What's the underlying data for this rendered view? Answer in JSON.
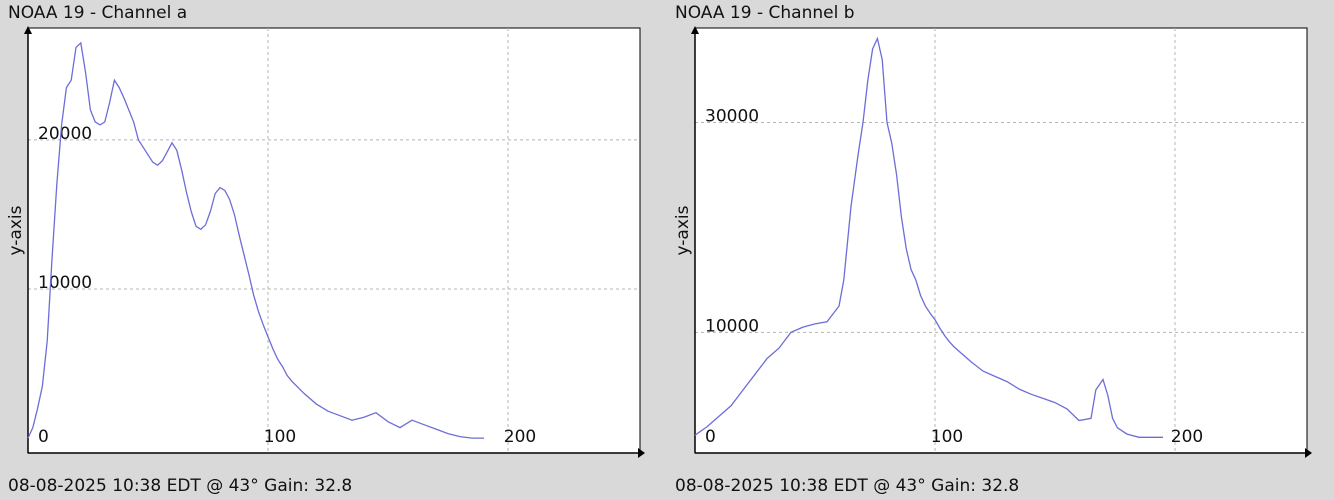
{
  "chart_data": [
    {
      "type": "line",
      "title": "NOAA 19 - Channel a",
      "footer": "08-08-2025 10:38 EDT @ 43° Gain: 32.8",
      "xlabel": "",
      "ylabel": "y-axis",
      "xlim": [
        0,
        255
      ],
      "ylim": [
        -1000,
        27500
      ],
      "xticks": [
        0,
        100,
        200
      ],
      "yticks": [
        10000,
        20000
      ],
      "grid": true,
      "series_color": "#6d6dd9",
      "series": [
        {
          "x": [
            0,
            2,
            4,
            6,
            8,
            10,
            12,
            14,
            16,
            18,
            20,
            22,
            24,
            26,
            28,
            30,
            32,
            34,
            36,
            38,
            40,
            42,
            44,
            46,
            48,
            50,
            52,
            54,
            56,
            58,
            60,
            62,
            64,
            66,
            68,
            70,
            72,
            74,
            76,
            78,
            80,
            82,
            84,
            86,
            88,
            90,
            92,
            94,
            96,
            98,
            100,
            102,
            104,
            106,
            108,
            110,
            115,
            120,
            125,
            130,
            135,
            140,
            145,
            150,
            155,
            160,
            165,
            170,
            175,
            180,
            185,
            190
          ],
          "y": [
            0,
            700,
            2000,
            3500,
            6500,
            12000,
            17000,
            21000,
            23500,
            24000,
            26200,
            26500,
            24500,
            22000,
            21200,
            21000,
            21200,
            22500,
            24000,
            23500,
            22800,
            22000,
            21200,
            20000,
            19500,
            19000,
            18500,
            18300,
            18600,
            19200,
            19800,
            19300,
            18000,
            16500,
            15200,
            14200,
            14000,
            14300,
            15200,
            16400,
            16800,
            16600,
            16000,
            15000,
            13600,
            12300,
            11000,
            9600,
            8500,
            7600,
            6800,
            6000,
            5300,
            4800,
            4200,
            3800,
            3000,
            2300,
            1800,
            1500,
            1200,
            1400,
            1700,
            1100,
            700,
            1200,
            900,
            600,
            300,
            100,
            0,
            0
          ]
        }
      ]
    },
    {
      "type": "line",
      "title": "NOAA 19 - Channel b",
      "footer": "08-08-2025 10:38 EDT @ 43° Gain: 32.8",
      "xlabel": "",
      "ylabel": "y-axis",
      "xlim": [
        0,
        255
      ],
      "ylim": [
        -1500,
        39000
      ],
      "xticks": [
        0,
        100,
        200
      ],
      "yticks": [
        10000,
        30000
      ],
      "grid": true,
      "series_color": "#6d6dd9",
      "series": [
        {
          "x": [
            0,
            5,
            10,
            15,
            20,
            25,
            30,
            35,
            40,
            45,
            50,
            55,
            60,
            62,
            65,
            68,
            70,
            72,
            74,
            76,
            78,
            80,
            82,
            84,
            86,
            88,
            90,
            92,
            94,
            96,
            98,
            100,
            102,
            104,
            106,
            108,
            110,
            115,
            120,
            125,
            130,
            135,
            140,
            145,
            150,
            155,
            160,
            165,
            167,
            170,
            172,
            174,
            176,
            180,
            185,
            190,
            195
          ],
          "y": [
            200,
            1000,
            2000,
            3000,
            4500,
            6000,
            7500,
            8500,
            10000,
            10500,
            10800,
            11000,
            12500,
            15000,
            22000,
            27000,
            30000,
            34000,
            37000,
            38000,
            36000,
            30000,
            28000,
            25000,
            21000,
            18000,
            16000,
            15000,
            13500,
            12500,
            11800,
            11200,
            10400,
            9700,
            9100,
            8600,
            8200,
            7200,
            6300,
            5800,
            5300,
            4600,
            4100,
            3700,
            3300,
            2700,
            1600,
            1800,
            4500,
            5500,
            4000,
            1800,
            900,
            300,
            0,
            0,
            0
          ]
        }
      ]
    }
  ]
}
